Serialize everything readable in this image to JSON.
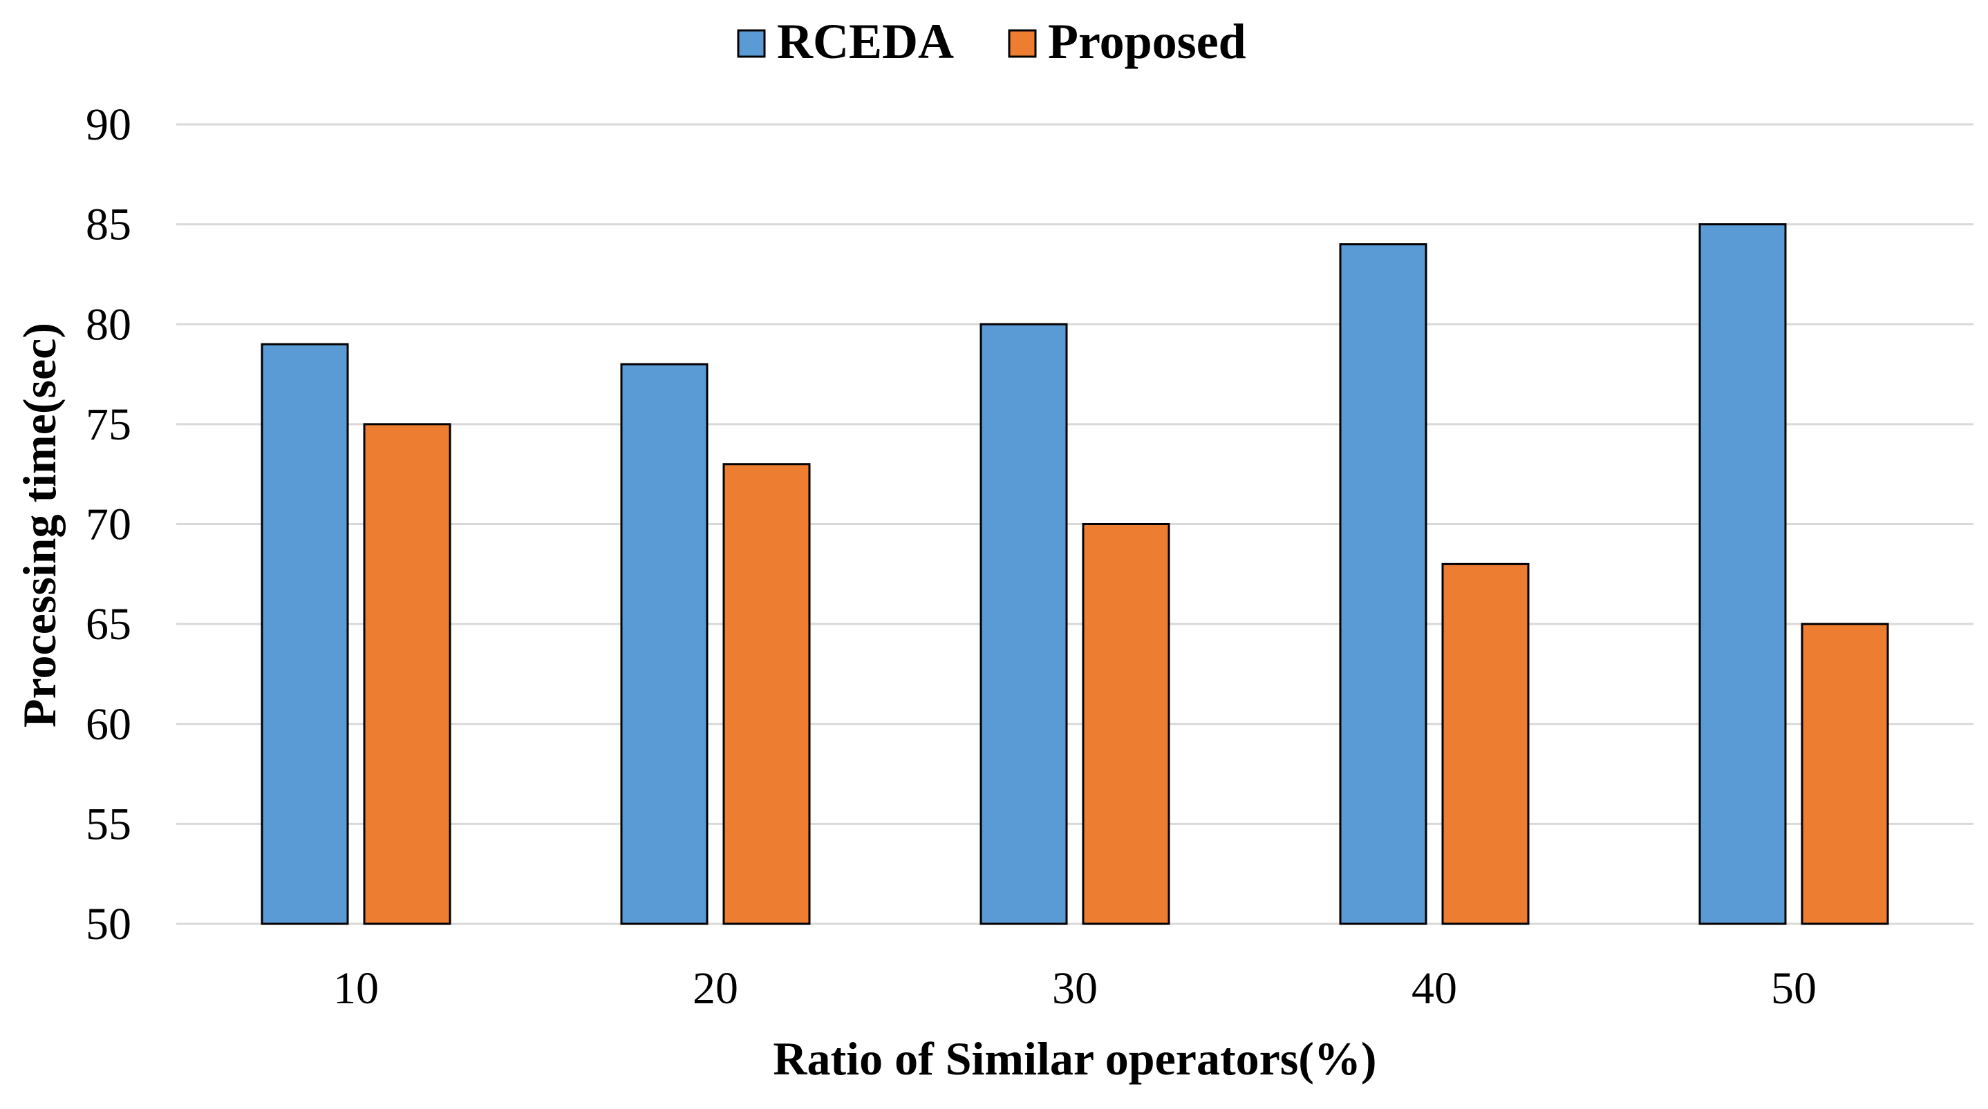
{
  "chart_data": {
    "type": "bar",
    "title": "",
    "xlabel": "Ratio of Similar operators(%)",
    "ylabel": "Processing time(sec)",
    "categories": [
      "10",
      "20",
      "30",
      "40",
      "50"
    ],
    "ylim": [
      50,
      90
    ],
    "yticks": [
      50,
      55,
      60,
      65,
      70,
      75,
      80,
      85,
      90
    ],
    "grid": true,
    "legend_position": "top-center",
    "series": [
      {
        "name": "RCEDA",
        "color": "#5b9bd5",
        "values": [
          79,
          78,
          80,
          84,
          85
        ]
      },
      {
        "name": "Proposed",
        "color": "#ed7d31",
        "values": [
          75,
          73,
          70,
          68,
          65
        ]
      }
    ]
  }
}
